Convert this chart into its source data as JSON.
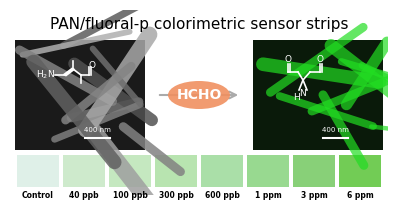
{
  "title": "PAN/fluoral-p colorimetric sensor strips",
  "title_fontsize": 11,
  "background_color": "#ffffff",
  "arrow_label": "HCHO",
  "arrow_color": "#F4A460",
  "arrow_label_color": "#8B4513",
  "color_strips": [
    {
      "label": "Control",
      "color": "#dff0e8"
    },
    {
      "label": "40 ppb",
      "color": "#ceeacc"
    },
    {
      "label": "100 ppb",
      "color": "#c5e8c0"
    },
    {
      "label": "300 ppb",
      "color": "#b8e4b0"
    },
    {
      "label": "600 ppb",
      "color": "#aadfa8"
    },
    {
      "label": "1 ppm",
      "color": "#98d990"
    },
    {
      "label": "3 ppm",
      "color": "#88d078"
    },
    {
      "label": "6 ppm",
      "color": "#72cc55"
    }
  ],
  "left_img_bg": "#1a1a1a",
  "right_img_bg": "#0a1a0a",
  "scale_bar_color": "#ffffff",
  "scale_bar_label": "400 nm",
  "formula_left_color": "#ffffff",
  "formula_right_color": "#ffffff",
  "fiber_color_left": "#888888",
  "fiber_color_right": "#33cc33"
}
